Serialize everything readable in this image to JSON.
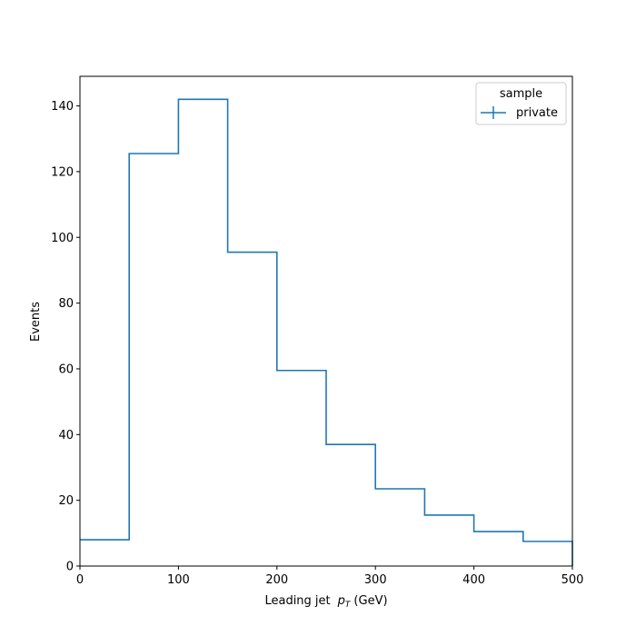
{
  "chart_data": {
    "type": "step",
    "xlabel": "Leading jet",
    "xlabel_math": "p",
    "xlabel_sub": "T",
    "xlabel_unit": "(GeV)",
    "ylabel": "Events",
    "xlim": [
      0,
      500
    ],
    "ylim": [
      0,
      149
    ],
    "xticks": [
      0,
      100,
      200,
      300,
      400,
      500
    ],
    "yticks": [
      0,
      20,
      40,
      60,
      80,
      100,
      120,
      140
    ],
    "grid": false,
    "legend": {
      "title": "sample",
      "placement": "top-right"
    },
    "color": "#1f77b4",
    "series": [
      {
        "name": "private",
        "bin_edges": [
          0,
          50,
          100,
          150,
          200,
          250,
          300,
          350,
          400,
          450,
          500
        ],
        "values": [
          8,
          125.5,
          142,
          95.5,
          59.5,
          37,
          23.5,
          15.5,
          10.5,
          7.5
        ]
      }
    ]
  }
}
